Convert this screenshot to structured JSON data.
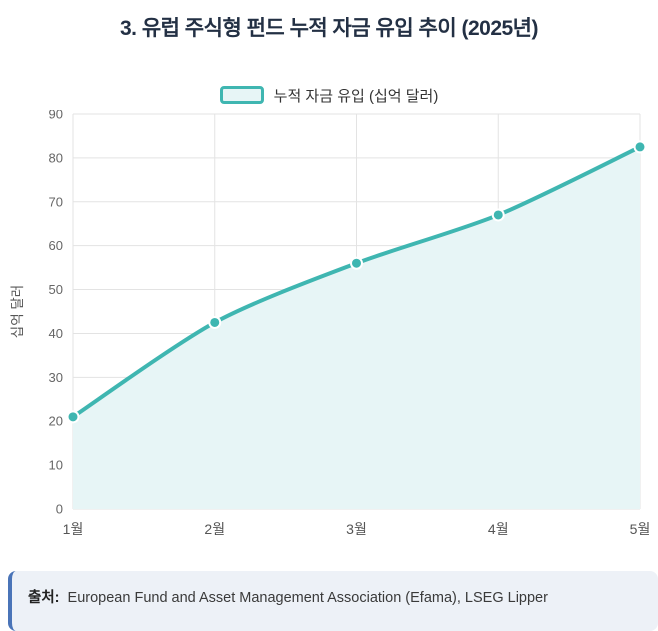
{
  "title": "3. 유럽 주식형 펀드 누적 자금 유입 추이 (2025년)",
  "legend": {
    "label": "누적 자금 유입 (십억 달러)"
  },
  "source": {
    "prefix": "출처:",
    "text": " European Fund and Asset Management Association (Efama), LSEG Lipper"
  },
  "colors": {
    "line": "#3FB6B1",
    "fill": "#E7F5F6",
    "grid": "#E3E3E3",
    "tick": "#666666",
    "title": "#233044",
    "source_border": "#4A74B8",
    "source_bg": "#EDF1F7"
  },
  "chart_data": {
    "type": "area",
    "categories": [
      "1월",
      "2월",
      "3월",
      "4월",
      "5월"
    ],
    "series": [
      {
        "name": "누적 자금 유입 (십억 달러)",
        "values": [
          21,
          42.5,
          56,
          67,
          82.5
        ]
      }
    ],
    "title": "3. 유럽 주식형 펀드 누적 자금 유입 추이 (2025년)",
    "xlabel": "",
    "ylabel": "십억 달러",
    "ylim": [
      0,
      90
    ],
    "ytick_step": 10,
    "grid": true,
    "legend_position": "top",
    "marker": "circle",
    "smooth": true
  }
}
